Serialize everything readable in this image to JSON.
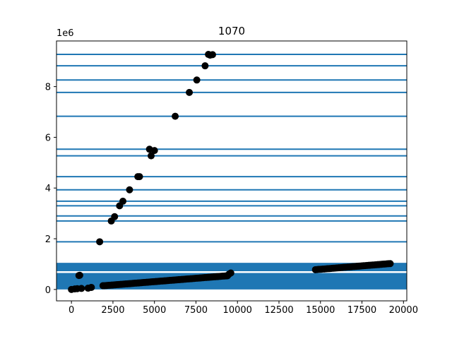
{
  "chart_data": {
    "type": "scatter",
    "title": "1070",
    "xlabel": "",
    "ylabel": "",
    "y_offset_label": "1e6",
    "xlim": [
      -900,
      20200
    ],
    "ylim": [
      -450000,
      9800000
    ],
    "x_ticks": [
      0,
      2500,
      5000,
      7500,
      10000,
      12500,
      15000,
      17500,
      20000
    ],
    "x_tick_labels": [
      "0",
      "2500",
      "5000",
      "7500",
      "10000",
      "12500",
      "15000",
      "17500",
      "20000"
    ],
    "y_ticks": [
      0,
      2000000,
      4000000,
      6000000,
      8000000
    ],
    "y_tick_labels": [
      "0",
      "2",
      "4",
      "6",
      "8"
    ],
    "grid": false,
    "colors": {
      "lines": "#1f77b4",
      "points": "#000000"
    },
    "band_regions": [
      [
        0,
        1050000
      ]
    ],
    "band_gaps": [
      [
        650000,
        720000
      ]
    ],
    "horizontal_lines": [
      1880000,
      2700000,
      2900000,
      3300000,
      3480000,
      3930000,
      4450000,
      5270000,
      5530000,
      6830000,
      7770000,
      8260000,
      8820000,
      9270000
    ],
    "scatter_points": [
      [
        0,
        0
      ],
      [
        200,
        20000
      ],
      [
        350,
        30000
      ],
      [
        450,
        550000
      ],
      [
        500,
        560000
      ],
      [
        600,
        40000
      ],
      [
        1000,
        50000
      ],
      [
        1200,
        80000
      ],
      [
        1700,
        1880000
      ],
      [
        1900,
        150000
      ],
      [
        2400,
        2700000
      ],
      [
        2600,
        2870000
      ],
      [
        2900,
        3300000
      ],
      [
        3100,
        3480000
      ],
      [
        3500,
        3930000
      ],
      [
        4000,
        4450000
      ],
      [
        4100,
        4450000
      ],
      [
        4700,
        5530000
      ],
      [
        4800,
        5270000
      ],
      [
        5000,
        5480000
      ],
      [
        6250,
        6830000
      ],
      [
        7100,
        7770000
      ],
      [
        7550,
        8260000
      ],
      [
        8050,
        8820000
      ],
      [
        8250,
        9270000
      ],
      [
        8350,
        9240000
      ],
      [
        8500,
        9260000
      ],
      [
        9500,
        610000
      ],
      [
        9600,
        650000
      ]
    ],
    "scatter_segments": [
      {
        "x_start": 2000,
        "x_end": 9400,
        "y_start": 150000,
        "y_end": 540000
      },
      {
        "x_start": 14700,
        "x_end": 19200,
        "y_start": 780000,
        "y_end": 1020000
      }
    ]
  }
}
